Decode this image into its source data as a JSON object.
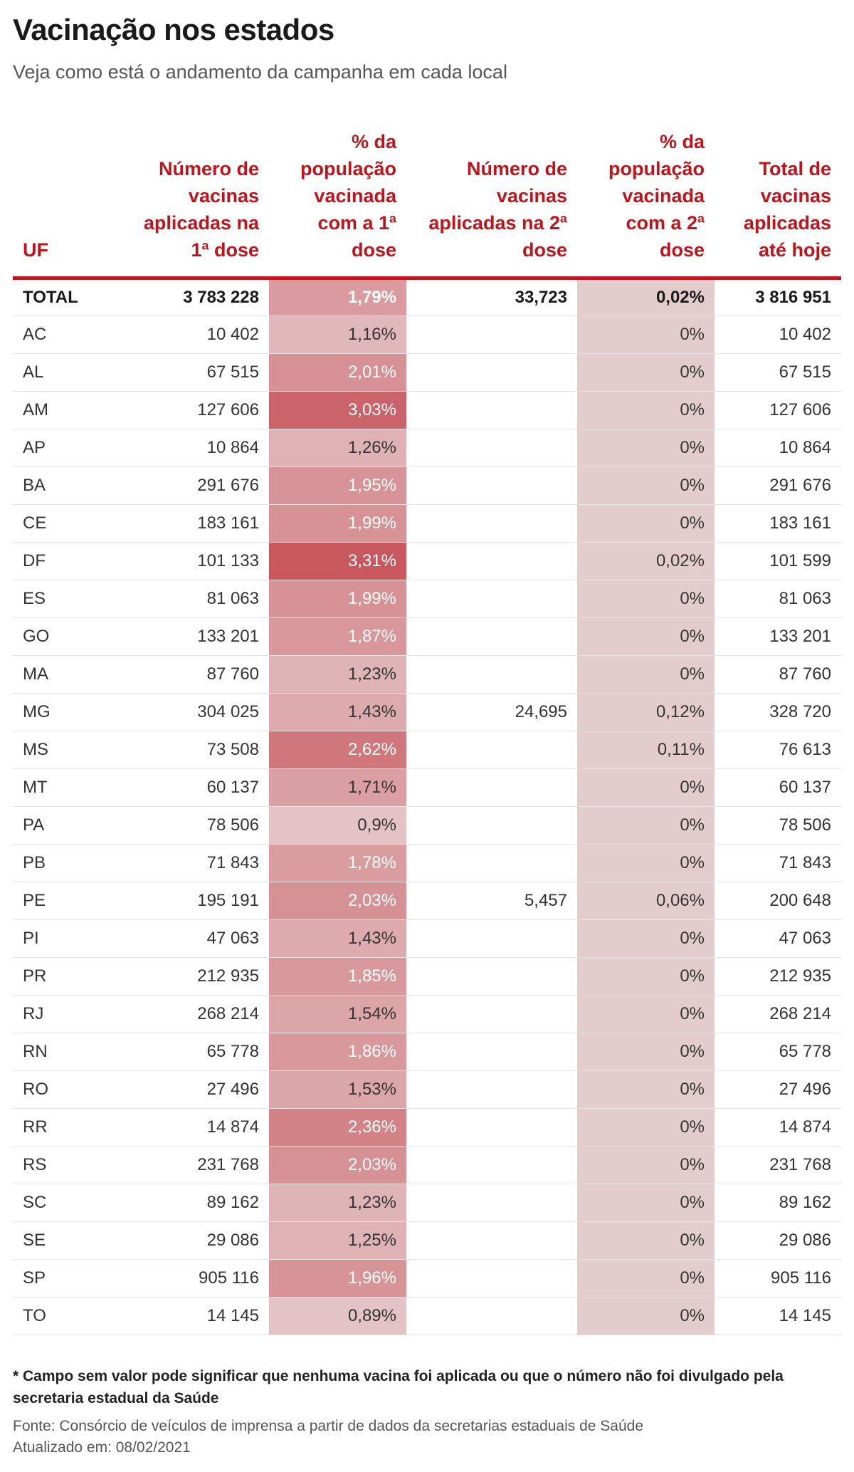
{
  "title": "Vacinação nos estados",
  "subtitle": "Veja como está o andamento da campanha em cada local",
  "colors": {
    "header_text": "#c0141c",
    "header_rule": "#c8141c",
    "pct2_bg": "#e3ccce",
    "heat_min": "#e3c3c5",
    "heat_max": "#c8585e"
  },
  "chart_data": {
    "type": "table",
    "columns": [
      "UF",
      "Número de vacinas aplicadas na 1ª dose",
      "% da população vacinada com a 1ª dose",
      "Número de vacinas aplicadas na 2ª dose",
      "% da população vacinada com a 2ª dose",
      "Total de vacinas aplicadas até hoje"
    ],
    "rows": [
      [
        "TOTAL",
        "3 783 228",
        "1,79%",
        "33,723",
        "0,02%",
        "3 816 951"
      ],
      [
        "AC",
        "10 402",
        "1,16%",
        "",
        "0%",
        "10 402"
      ],
      [
        "AL",
        "67 515",
        "2,01%",
        "",
        "0%",
        "67 515"
      ],
      [
        "AM",
        "127 606",
        "3,03%",
        "",
        "0%",
        "127 606"
      ],
      [
        "AP",
        "10 864",
        "1,26%",
        "",
        "0%",
        "10 864"
      ],
      [
        "BA",
        "291 676",
        "1,95%",
        "",
        "0%",
        "291 676"
      ],
      [
        "CE",
        "183 161",
        "1,99%",
        "",
        "0%",
        "183 161"
      ],
      [
        "DF",
        "101 133",
        "3,31%",
        "",
        "0,02%",
        "101 599"
      ],
      [
        "ES",
        "81 063",
        "1,99%",
        "",
        "0%",
        "81 063"
      ],
      [
        "GO",
        "133 201",
        "1,87%",
        "",
        "0%",
        "133 201"
      ],
      [
        "MA",
        "87 760",
        "1,23%",
        "",
        "0%",
        "87 760"
      ],
      [
        "MG",
        "304 025",
        "1,43%",
        "24,695",
        "0,12%",
        "328 720"
      ],
      [
        "MS",
        "73 508",
        "2,62%",
        "",
        "0,11%",
        "76 613"
      ],
      [
        "MT",
        "60 137",
        "1,71%",
        "",
        "0%",
        "60 137"
      ],
      [
        "PA",
        "78 506",
        "0,9%",
        "",
        "0%",
        "78 506"
      ],
      [
        "PB",
        "71 843",
        "1,78%",
        "",
        "0%",
        "71 843"
      ],
      [
        "PE",
        "195 191",
        "2,03%",
        "5,457",
        "0,06%",
        "200 648"
      ],
      [
        "PI",
        "47 063",
        "1,43%",
        "",
        "0%",
        "47 063"
      ],
      [
        "PR",
        "212 935",
        "1,85%",
        "",
        "0%",
        "212 935"
      ],
      [
        "RJ",
        "268 214",
        "1,54%",
        "",
        "0%",
        "268 214"
      ],
      [
        "RN",
        "65 778",
        "1,86%",
        "",
        "0%",
        "65 778"
      ],
      [
        "RO",
        "27 496",
        "1,53%",
        "",
        "0%",
        "27 496"
      ],
      [
        "RR",
        "14 874",
        "2,36%",
        "",
        "0%",
        "14 874"
      ],
      [
        "RS",
        "231 768",
        "2,03%",
        "",
        "0%",
        "231 768"
      ],
      [
        "SC",
        "89 162",
        "1,23%",
        "",
        "0%",
        "89 162"
      ],
      [
        "SE",
        "29 086",
        "1,25%",
        "",
        "0%",
        "29 086"
      ],
      [
        "SP",
        "905 116",
        "1,96%",
        "",
        "0%",
        "905 116"
      ],
      [
        "TO",
        "14 145",
        "0,89%",
        "",
        "0%",
        "14 145"
      ]
    ]
  },
  "footnote": "* Campo sem valor pode significar que nenhuma vacina foi aplicada ou que o número não foi divulgado pela secretaria estadual da Saúde",
  "source": "Fonte: Consórcio de veículos de imprensa a partir de dados da secretarias estaduais de Saúde",
  "updated": "Atualizado em: 08/02/2021"
}
